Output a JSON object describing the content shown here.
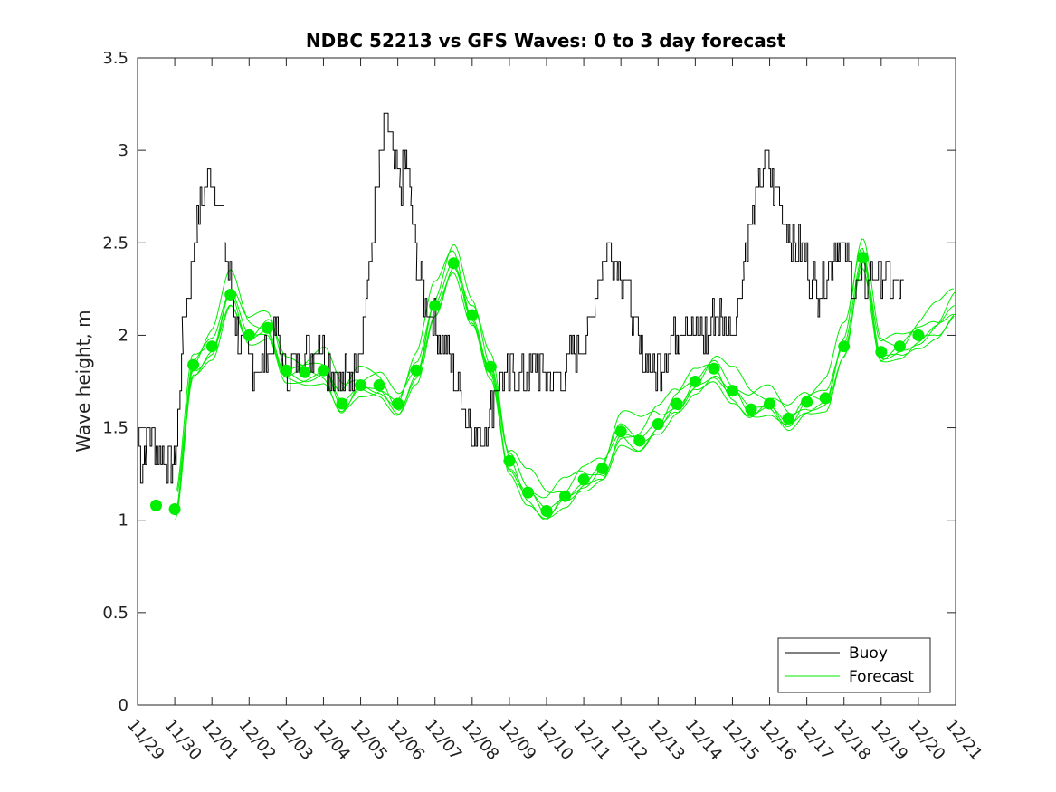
{
  "chart_data": {
    "type": "line",
    "title": "NDBC 52213 vs GFS Waves: 0 to 3 day forecast",
    "xlabel": "",
    "ylabel": "Wave height, m",
    "xlim": [
      0,
      22
    ],
    "ylim": [
      0,
      3.5
    ],
    "x_tick_labels": [
      "11/29",
      "11/30",
      "12/01",
      "12/02",
      "12/03",
      "12/04",
      "12/05",
      "12/06",
      "12/07",
      "12/08",
      "12/09",
      "12/10",
      "12/11",
      "12/12",
      "12/13",
      "12/14",
      "12/15",
      "12/16",
      "12/17",
      "12/18",
      "12/19",
      "12/20",
      "12/21"
    ],
    "y_ticks": [
      0,
      0.5,
      1,
      1.5,
      2,
      2.5,
      3,
      3.5
    ],
    "y_tick_labels": [
      "0",
      "0.5",
      "1",
      "1.5",
      "2",
      "2.5",
      "3",
      "3.5"
    ],
    "grid": false,
    "legend": {
      "position": "bottom-right",
      "entries": [
        "Buoy",
        "Forecast"
      ]
    },
    "colors": {
      "buoy": "#000000",
      "forecast": "#00ee00",
      "axes": "#262626"
    },
    "series": [
      {
        "name": "Buoy",
        "x": [
          0,
          0.1,
          0.2,
          0.3,
          0.5,
          0.7,
          0.9,
          1.0,
          1.1,
          1.2,
          1.4,
          1.6,
          1.8,
          2.0,
          2.2,
          2.4,
          2.55,
          2.7,
          2.9,
          3.1,
          3.3,
          3.5,
          3.7,
          3.9,
          4.1,
          4.3,
          4.5,
          4.7,
          4.9,
          5.1,
          5.3,
          5.5,
          5.7,
          5.9,
          6.1,
          6.3,
          6.5,
          6.7,
          6.9,
          7.05,
          7.2,
          7.35,
          7.5,
          7.7,
          7.9,
          8.1,
          8.3,
          8.5,
          8.7,
          8.9,
          9.1,
          9.3,
          9.5,
          9.7,
          9.9,
          10.1,
          10.3,
          10.5,
          10.7,
          10.9,
          11.1,
          11.3,
          11.5,
          11.7,
          11.9,
          12.1,
          12.3,
          12.5,
          12.7,
          12.9,
          13.1,
          13.3,
          13.5,
          13.7,
          13.9,
          14.1,
          14.3,
          14.5,
          14.7,
          14.9,
          15.1,
          15.3,
          15.5,
          15.7,
          15.9,
          16.1,
          16.3,
          16.5,
          16.7,
          16.9,
          17.1,
          17.3,
          17.5,
          17.7,
          17.9,
          18.1,
          18.3,
          18.5,
          18.7,
          18.85,
          19.0,
          19.2,
          19.4,
          19.6,
          19.8,
          20.0,
          20.2,
          20.4,
          20.6
        ],
        "values": [
          1.5,
          1.3,
          1.4,
          1.5,
          1.4,
          1.35,
          1.3,
          1.35,
          1.6,
          2.0,
          2.3,
          2.6,
          2.8,
          2.9,
          2.7,
          2.4,
          2.2,
          2.0,
          1.9,
          1.85,
          1.8,
          1.9,
          2.0,
          1.85,
          1.8,
          1.85,
          1.9,
          1.9,
          2.0,
          1.85,
          1.8,
          1.75,
          1.8,
          1.9,
          2.1,
          2.5,
          2.9,
          3.2,
          2.9,
          2.8,
          2.95,
          2.7,
          2.4,
          2.2,
          2.1,
          2.0,
          1.9,
          1.8,
          1.65,
          1.55,
          1.45,
          1.45,
          1.6,
          1.8,
          1.75,
          1.8,
          1.75,
          1.8,
          1.85,
          1.8,
          1.75,
          1.75,
          1.8,
          1.9,
          1.95,
          2.0,
          2.2,
          2.4,
          2.5,
          2.4,
          2.3,
          2.1,
          1.9,
          1.85,
          1.8,
          1.85,
          1.95,
          2.0,
          2.1,
          2.05,
          2.0,
          2.0,
          2.1,
          2.1,
          2.05,
          2.1,
          2.4,
          2.6,
          2.8,
          2.95,
          2.8,
          2.7,
          2.55,
          2.5,
          2.45,
          2.3,
          2.25,
          2.3,
          2.45,
          2.5,
          2.45,
          2.3,
          2.25,
          2.3,
          2.3,
          2.35,
          2.3,
          2.25,
          2.3
        ]
      },
      {
        "name": "Forecast",
        "x": [
          0.5,
          1.0,
          1.5,
          2.0,
          2.5,
          3.0,
          3.5,
          4.0,
          4.5,
          5.0,
          5.5,
          6.0,
          6.5,
          7.0,
          7.5,
          8.0,
          8.5,
          9.0,
          9.5,
          10.0,
          10.5,
          11.0,
          11.5,
          12.0,
          12.5,
          13.0,
          13.5,
          14.0,
          14.5,
          15.0,
          15.5,
          16.0,
          16.5,
          17.0,
          17.5,
          18.0,
          18.5,
          19.0,
          19.5,
          20.0,
          20.5,
          21.0,
          21.5,
          22.0
        ],
        "values": [
          1.08,
          1.06,
          1.84,
          1.94,
          2.22,
          2.0,
          2.04,
          1.81,
          1.8,
          1.81,
          1.63,
          1.73,
          1.73,
          1.63,
          1.81,
          2.16,
          2.39,
          2.11,
          1.83,
          1.32,
          1.15,
          1.05,
          1.13,
          1.22,
          1.28,
          1.48,
          1.43,
          1.52,
          1.63,
          1.75,
          1.82,
          1.7,
          1.6,
          1.63,
          1.55,
          1.64,
          1.66,
          1.94,
          2.42,
          1.91,
          1.94,
          2.0,
          2.05,
          2.15
        ]
      }
    ]
  }
}
